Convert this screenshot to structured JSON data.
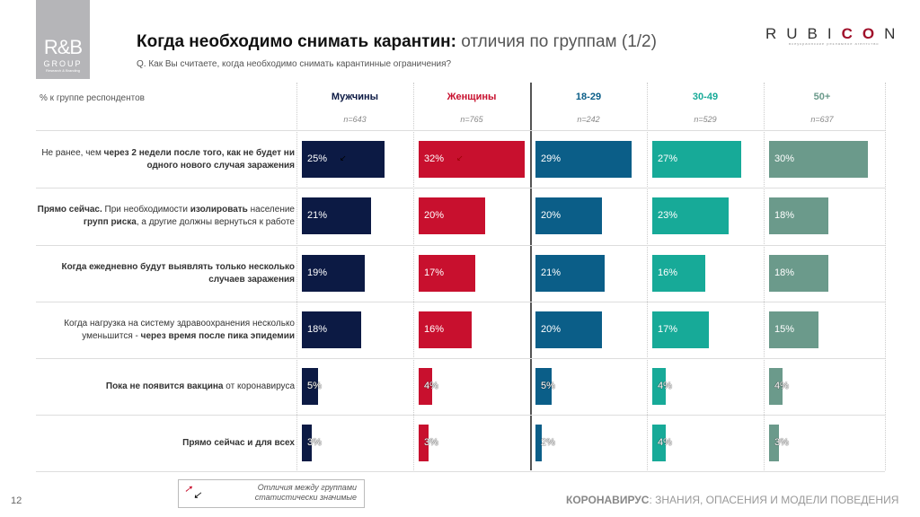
{
  "logo": {
    "line1": "R&B",
    "line2": "GROUP",
    "line3": "Research & Branding"
  },
  "header": {
    "title_bold": "Когда необходимо снимать карантин:",
    "title_rest": " отличия по группам ",
    "title_page": "(1/2)",
    "subtitle": "Q. Как Вы считаете, когда необходимо снимать карантинные ограничения?"
  },
  "brand": {
    "pre": "RUBI",
    "red": "CO",
    "post": "N",
    "tagline": "всеукраинские рекламное агентство"
  },
  "chart_data": {
    "type": "bar",
    "unit_label": "% к группе респондентов",
    "xlim": [
      0,
      100
    ],
    "groups": [
      {
        "name": "Мужчины",
        "n": "n=643",
        "color": "#0c1a44",
        "values": [
          25,
          21,
          19,
          18,
          5,
          3
        ],
        "value_labels": [
          "25%",
          "21%",
          "19%",
          "18%",
          "5%",
          "3%"
        ],
        "sig": [
          true,
          false,
          false,
          false,
          false,
          false
        ]
      },
      {
        "name": "Женщины",
        "n": "n=765",
        "color": "#c8102e",
        "values": [
          32,
          20,
          17,
          16,
          4,
          3
        ],
        "value_labels": [
          "32%",
          "20%",
          "17%",
          "16%",
          "4%",
          "3%"
        ],
        "sig": [
          true,
          false,
          false,
          false,
          false,
          false
        ]
      },
      {
        "name": "18-29",
        "n": "n=242",
        "color": "#0b5e88",
        "values": [
          29,
          20,
          21,
          20,
          5,
          2
        ],
        "value_labels": [
          "29%",
          "20%",
          "21%",
          "20%",
          "5%",
          "2%"
        ],
        "sig": [
          false,
          false,
          false,
          false,
          false,
          false
        ]
      },
      {
        "name": "30-49",
        "n": "n=529",
        "color": "#17aa98",
        "values": [
          27,
          23,
          16,
          17,
          4,
          4
        ],
        "value_labels": [
          "27%",
          "23%",
          "16%",
          "17%",
          "4%",
          "4%"
        ],
        "sig": [
          false,
          false,
          false,
          false,
          false,
          false
        ]
      },
      {
        "name": "50+",
        "n": "n=637",
        "color": "#6b9a8b",
        "values": [
          30,
          18,
          18,
          15,
          4,
          3
        ],
        "value_labels": [
          "30%",
          "18%",
          "18%",
          "15%",
          "4%",
          "3%"
        ],
        "sig": [
          false,
          false,
          false,
          false,
          false,
          false
        ]
      }
    ],
    "group_header_colors": [
      "#0c1a44",
      "#c8102e",
      "#0b5e88",
      "#17aa98",
      "#6b9a8b"
    ],
    "categories": [
      [
        {
          "t": "Не ранее, чем ",
          "b": false
        },
        {
          "t": "через 2 недели после того, как не будет ни одного нового случая заражения",
          "b": true
        }
      ],
      [
        {
          "t": "Прямо сейчас.",
          "b": true
        },
        {
          "t": " При необходимости ",
          "b": false
        },
        {
          "t": "изолировать",
          "b": true
        },
        {
          "t": " население ",
          "b": false
        },
        {
          "t": "групп риска",
          "b": true
        },
        {
          "t": ", а другие должны вернуться к работе",
          "b": false
        }
      ],
      [
        {
          "t": "Когда ежедневно будут выявлять только несколько случаев заражения",
          "b": true
        }
      ],
      [
        {
          "t": "Когда нагрузка на систему здравоохранения несколько уменьшится - ",
          "b": false
        },
        {
          "t": "через время после пика эпидемии",
          "b": true
        }
      ],
      [
        {
          "t": "Пока не появится вакцина",
          "b": true
        },
        {
          "t": " от коронавируса",
          "b": false
        }
      ],
      [
        {
          "t": "Прямо сейчас и для всех",
          "b": true
        }
      ]
    ]
  },
  "legend": {
    "line1": "Отличия между группами",
    "line2": "статистически значимые",
    "icons": [
      "arrow-up-red",
      "arrow-down-black"
    ]
  },
  "footer": {
    "page": "12",
    "bold": "КОРОНАВИРУС",
    "rest": ": ЗНАНИЯ, ОПАСЕНИЯ И МОДЕЛИ ПОВЕДЕНИЯ"
  }
}
